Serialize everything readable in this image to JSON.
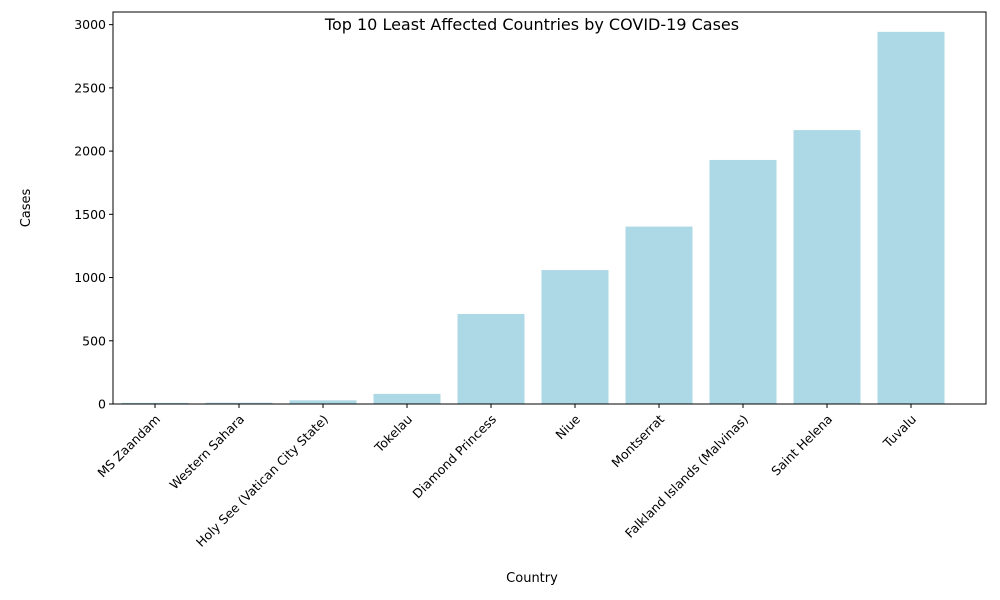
{
  "chart_data": {
    "type": "bar",
    "title": "Top 10 Least Affected Countries by COVID-19 Cases",
    "xlabel": "Country",
    "ylabel": "Cases",
    "categories": [
      "MS Zaandam",
      "Western Sahara",
      "Holy See (Vatican City State)",
      "Tokelau",
      "Diamond Princess",
      "Niue",
      "Montserrat",
      "Falkland Islands (Malvinas)",
      "Saint Helena",
      "Tuvalu"
    ],
    "values": [
      9,
      10,
      29,
      80,
      712,
      1059,
      1403,
      1930,
      2166,
      2943
    ],
    "ylim": [
      0,
      3100
    ],
    "yticks": [
      0,
      500,
      1000,
      1500,
      2000,
      2500,
      3000
    ],
    "bar_color": "#add8e6",
    "grid": false,
    "legend": "none"
  }
}
